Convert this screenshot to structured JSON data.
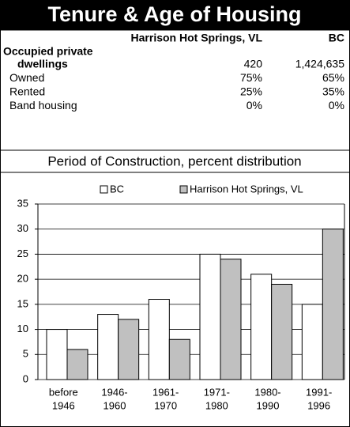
{
  "header": {
    "title": "Tenure & Age of Housing"
  },
  "table": {
    "columns": [
      "Harrison Hot Springs, VL",
      "BC"
    ],
    "rows": [
      {
        "label": [
          "Occupied private",
          "dwellings"
        ],
        "values": [
          "420",
          "1,424,635"
        ]
      },
      {
        "label": [
          "Owned"
        ],
        "values": [
          "75%",
          "65%"
        ]
      },
      {
        "label": [
          "Rented"
        ],
        "values": [
          "25%",
          "35%"
        ]
      },
      {
        "label": [
          "Band housing"
        ],
        "values": [
          "0%",
          "0%"
        ]
      }
    ]
  },
  "chart_data": {
    "type": "bar",
    "title": "Period of Construction, percent distribution",
    "categories": [
      [
        "before",
        "1946"
      ],
      [
        "1946-",
        "1960"
      ],
      [
        "1961-",
        "1970"
      ],
      [
        "1971-",
        "1980"
      ],
      [
        "1980-",
        "1990"
      ],
      [
        "1991-",
        "1996"
      ]
    ],
    "series": [
      {
        "name": "BC",
        "color": "#ffffff",
        "values": [
          10,
          13,
          16,
          25,
          21,
          15
        ]
      },
      {
        "name": "Harrison Hot Springs, VL",
        "color": "#c0c0c0",
        "values": [
          6,
          12,
          8,
          24,
          19,
          30
        ]
      }
    ],
    "ylim": [
      0,
      35
    ],
    "yticks": [
      0,
      5,
      10,
      15,
      20,
      25,
      30,
      35
    ],
    "grid": true,
    "legend": "top"
  }
}
